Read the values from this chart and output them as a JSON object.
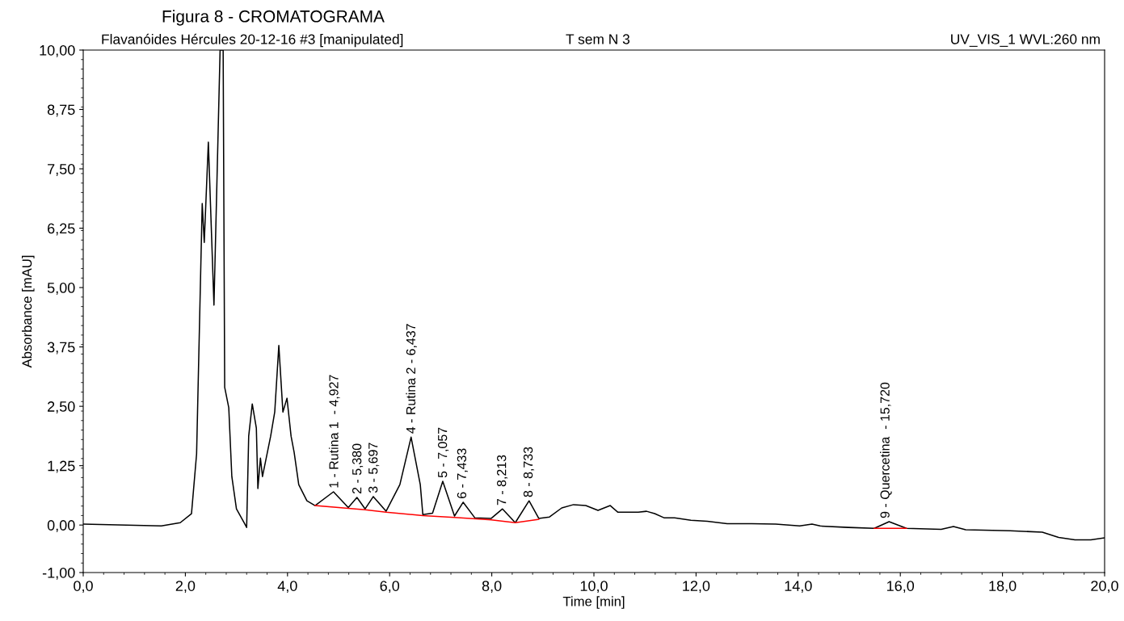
{
  "chart_data": {
    "type": "line",
    "title": "Figura 8 - CROMATOGRAMA",
    "xlabel": "Time [min]",
    "ylabel": "Absorbance [mAU]",
    "annotations": [
      "Flavanóides Hércules 20-12-16 #3 [manipulated]",
      "T sem N 3",
      "UV_VIS_1 WVL:260 nm",
      {
        "text": "1 - Rutina 1  - 4,927",
        "x": 4.927,
        "y": 0.7
      },
      {
        "text": "2 - 5,380",
        "x": 5.38,
        "y": 0.58
      },
      {
        "text": "3 - 5,697",
        "x": 5.697,
        "y": 0.6
      },
      {
        "text": "4 - Rutina 2 - 6,437",
        "x": 6.437,
        "y": 1.85
      },
      {
        "text": "5 - 7,057",
        "x": 7.057,
        "y": 0.92
      },
      {
        "text": "6 - 7,433",
        "x": 7.433,
        "y": 0.48
      },
      {
        "text": "7 - 8,213",
        "x": 8.213,
        "y": 0.34
      },
      {
        "text": "8 - 8,733",
        "x": 8.733,
        "y": 0.51
      },
      {
        "text": "9 - Quercetina  - 15,720",
        "x": 15.72,
        "y": 0.07
      }
    ],
    "xlim": [
      0,
      20
    ],
    "ylim": [
      -1,
      10
    ],
    "xticks": [
      {
        "value": 0,
        "label": "0,0"
      },
      {
        "value": 2,
        "label": "2,0"
      },
      {
        "value": 4,
        "label": "4,0"
      },
      {
        "value": 6,
        "label": "6,0"
      },
      {
        "value": 8,
        "label": "8,0"
      },
      {
        "value": 10,
        "label": "10,0"
      },
      {
        "value": 12,
        "label": "12,0"
      },
      {
        "value": 14,
        "label": "14,0"
      },
      {
        "value": 16,
        "label": "16,0"
      },
      {
        "value": 18,
        "label": "18,0"
      },
      {
        "value": 20,
        "label": "20,0"
      }
    ],
    "yticks": [
      {
        "value": -1,
        "label": "-1,00"
      },
      {
        "value": 0,
        "label": "0,00"
      },
      {
        "value": 1.25,
        "label": "1,25"
      },
      {
        "value": 2.5,
        "label": "2,50"
      },
      {
        "value": 3.75,
        "label": "3,75"
      },
      {
        "value": 5,
        "label": "5,00"
      },
      {
        "value": 6.25,
        "label": "6,25"
      },
      {
        "value": 7.5,
        "label": "7,50"
      },
      {
        "value": 8.75,
        "label": "8,75"
      },
      {
        "value": 10,
        "label": "10,00"
      }
    ],
    "grid": false,
    "marker": "none",
    "line_style": "solid",
    "series": [
      {
        "color": "#000000",
        "x": [
          0,
          1.53,
          1.9,
          2.12,
          2.22,
          2.33,
          2.37,
          2.45,
          2.56,
          2.68,
          2.74,
          2.77,
          2.85,
          2.91,
          3.0,
          3.16,
          3.2,
          3.24,
          3.31,
          3.39,
          3.42,
          3.47,
          3.51,
          3.67,
          3.75,
          3.83,
          3.91,
          3.99,
          4.07,
          4.13,
          4.22,
          4.38,
          4.54,
          4.9,
          5.19,
          5.36,
          5.52,
          5.68,
          5.93,
          6.2,
          6.42,
          6.6,
          6.65,
          6.84,
          7.04,
          7.27,
          7.44,
          7.67,
          7.99,
          8.21,
          8.46,
          8.73,
          8.92,
          9.13,
          9.37,
          9.6,
          9.84,
          10.08,
          10.32,
          10.47,
          10.87,
          11.03,
          11.19,
          11.38,
          11.58,
          11.9,
          12.22,
          12.61,
          13.09,
          13.56,
          14.03,
          14.27,
          14.43,
          14.98,
          15.49,
          15.78,
          16.12,
          16.8,
          17.04,
          17.28,
          18.15,
          18.78,
          19.1,
          19.42,
          19.73,
          20.0
        ],
        "values": [
          0.02,
          -0.02,
          0.05,
          0.24,
          1.5,
          6.77,
          5.95,
          8.06,
          4.63,
          10.0,
          10.0,
          2.9,
          2.47,
          1.02,
          0.34,
          0.03,
          -0.05,
          1.87,
          2.55,
          2.04,
          0.77,
          1.41,
          1.02,
          1.87,
          2.38,
          3.78,
          2.38,
          2.67,
          1.87,
          1.53,
          0.85,
          0.51,
          0.41,
          0.7,
          0.37,
          0.58,
          0.34,
          0.6,
          0.29,
          0.85,
          1.85,
          0.85,
          0.22,
          0.25,
          0.92,
          0.19,
          0.48,
          0.15,
          0.14,
          0.34,
          0.05,
          0.51,
          0.14,
          0.17,
          0.36,
          0.43,
          0.41,
          0.31,
          0.41,
          0.27,
          0.27,
          0.29,
          0.24,
          0.15,
          0.15,
          0.1,
          0.08,
          0.03,
          0.03,
          0.02,
          -0.02,
          0.02,
          -0.02,
          -0.05,
          -0.07,
          0.07,
          -0.07,
          -0.09,
          -0.03,
          -0.1,
          -0.12,
          -0.15,
          -0.26,
          -0.31,
          -0.31,
          -0.27
        ]
      },
      {
        "color": "#ff0000",
        "x": [
          4.54,
          5.52,
          5.93,
          6.65,
          7.27,
          7.99,
          8.46,
          8.92
        ],
        "values": [
          0.41,
          0.32,
          0.27,
          0.2,
          0.16,
          0.11,
          0.05,
          0.12
        ]
      },
      {
        "color": "#ff0000",
        "x": [
          15.49,
          16.12
        ],
        "values": [
          -0.07,
          -0.07
        ]
      }
    ]
  }
}
